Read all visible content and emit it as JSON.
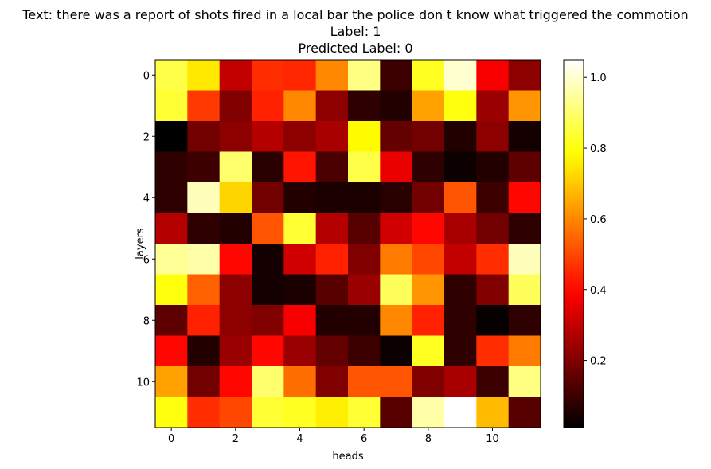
{
  "title_lines": [
    "Text: there was a report of shots fired in a local bar the police don t know what triggered the commotion",
    "Label: 1",
    "Predicted Label: 0"
  ],
  "chart_data": {
    "type": "heatmap",
    "colormap": "hot",
    "xlabel": "heads",
    "ylabel": "layers",
    "x_ticks": [
      0,
      2,
      4,
      6,
      8,
      10
    ],
    "y_ticks": [
      0,
      2,
      4,
      6,
      8,
      10
    ],
    "colorbar_ticks": [
      "0.2",
      "0.4",
      "0.6",
      "0.8",
      "1.0"
    ],
    "colorbar_tick_values": [
      0.2,
      0.4,
      0.6,
      0.8,
      1.0
    ],
    "vmin": 0.01,
    "vmax": 1.05,
    "values": [
      [
        0.86,
        0.75,
        0.3,
        0.46,
        0.45,
        0.6,
        0.92,
        0.1,
        0.82,
        1.0,
        0.38,
        0.22
      ],
      [
        0.84,
        0.48,
        0.2,
        0.44,
        0.6,
        0.22,
        0.08,
        0.06,
        0.64,
        0.8,
        0.24,
        0.62
      ],
      [
        0.01,
        0.18,
        0.22,
        0.28,
        0.22,
        0.26,
        0.78,
        0.16,
        0.18,
        0.06,
        0.22,
        0.04
      ],
      [
        0.08,
        0.1,
        0.9,
        0.07,
        0.42,
        0.12,
        0.86,
        0.36,
        0.08,
        0.03,
        0.06,
        0.15
      ],
      [
        0.08,
        0.98,
        0.72,
        0.18,
        0.06,
        0.05,
        0.05,
        0.07,
        0.18,
        0.52,
        0.1,
        0.4
      ],
      [
        0.28,
        0.08,
        0.06,
        0.52,
        0.84,
        0.28,
        0.14,
        0.32,
        0.4,
        0.26,
        0.18,
        0.08
      ],
      [
        0.94,
        0.96,
        0.4,
        0.04,
        0.32,
        0.44,
        0.2,
        0.58,
        0.5,
        0.3,
        0.46,
        0.98
      ],
      [
        0.8,
        0.54,
        0.22,
        0.04,
        0.05,
        0.14,
        0.24,
        0.88,
        0.62,
        0.08,
        0.2,
        0.88
      ],
      [
        0.15,
        0.44,
        0.22,
        0.2,
        0.38,
        0.06,
        0.06,
        0.6,
        0.44,
        0.08,
        0.02,
        0.08
      ],
      [
        0.4,
        0.06,
        0.24,
        0.4,
        0.24,
        0.16,
        0.1,
        0.03,
        0.82,
        0.08,
        0.46,
        0.58
      ],
      [
        0.64,
        0.18,
        0.4,
        0.9,
        0.56,
        0.2,
        0.52,
        0.52,
        0.2,
        0.26,
        0.1,
        0.92
      ],
      [
        0.8,
        0.46,
        0.5,
        0.84,
        0.82,
        0.76,
        0.84,
        0.14,
        0.96,
        1.05,
        0.68,
        0.14
      ]
    ]
  }
}
